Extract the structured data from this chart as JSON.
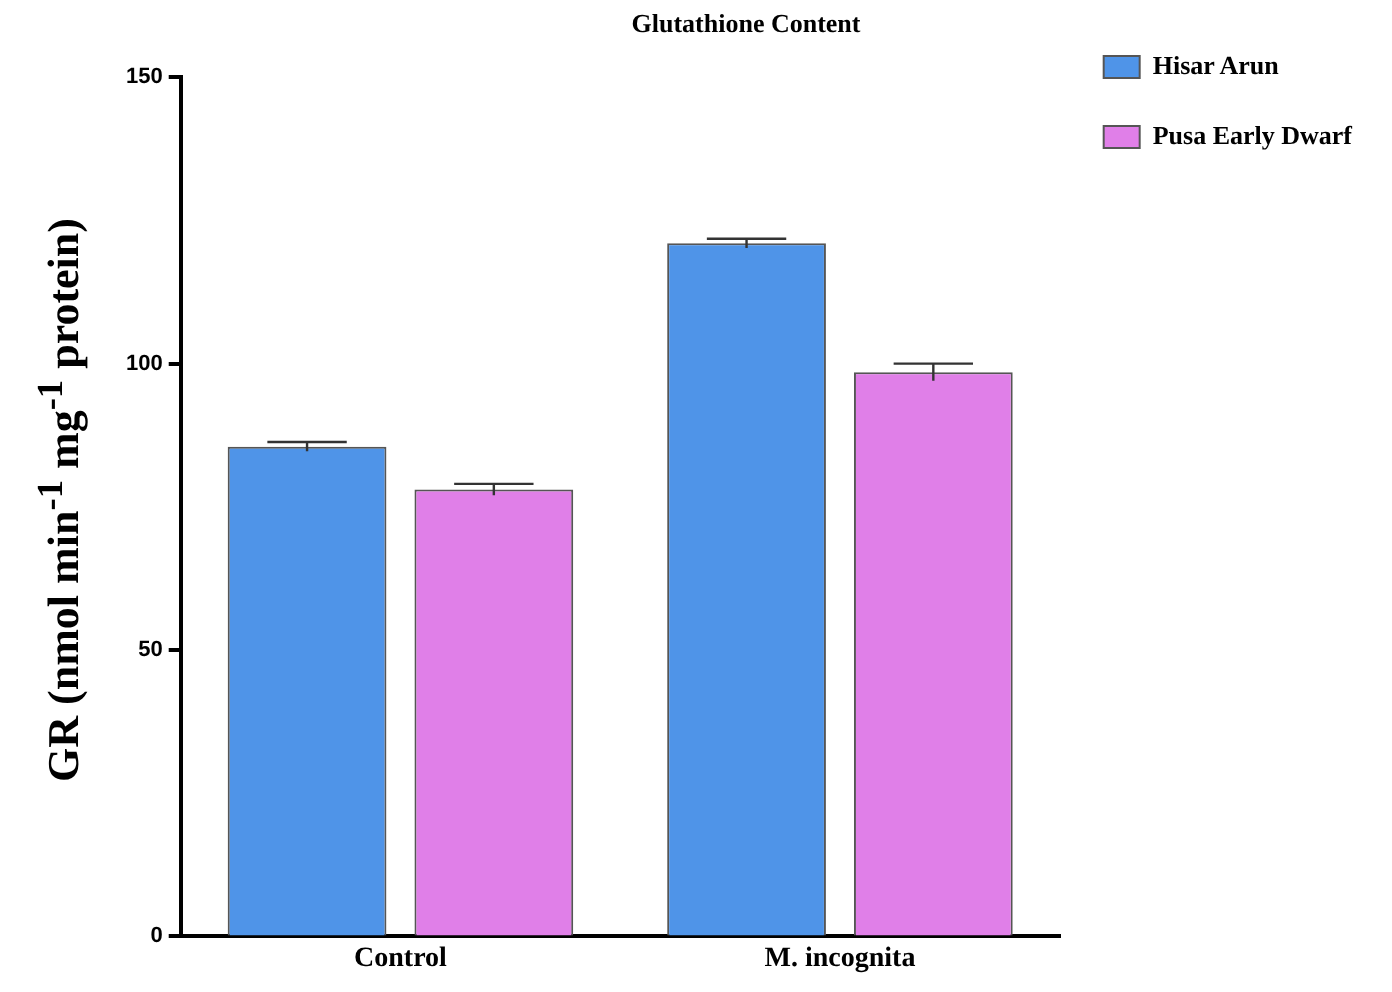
{
  "chart_data": {
    "type": "bar",
    "title": "Glutathione Content",
    "ylabel": "GR (nmol min$^{-1}$ mg$^{-1}$ protein)",
    "categories": [
      "Control",
      "M. incognita"
    ],
    "series": [
      {
        "name": "Hisar Arun",
        "color": "#4f94e8",
        "values": [
          85.5,
          121
        ],
        "errors": [
          0.8,
          0.8
        ]
      },
      {
        "name": "Pusa Early Dwarf",
        "color": "#e07fe8",
        "values": [
          78,
          98.5
        ],
        "errors": [
          1,
          1.5
        ]
      }
    ],
    "ylim": [
      0,
      150
    ],
    "yticks": [
      0,
      50,
      100,
      150
    ],
    "grid": false,
    "legend": "top right"
  }
}
